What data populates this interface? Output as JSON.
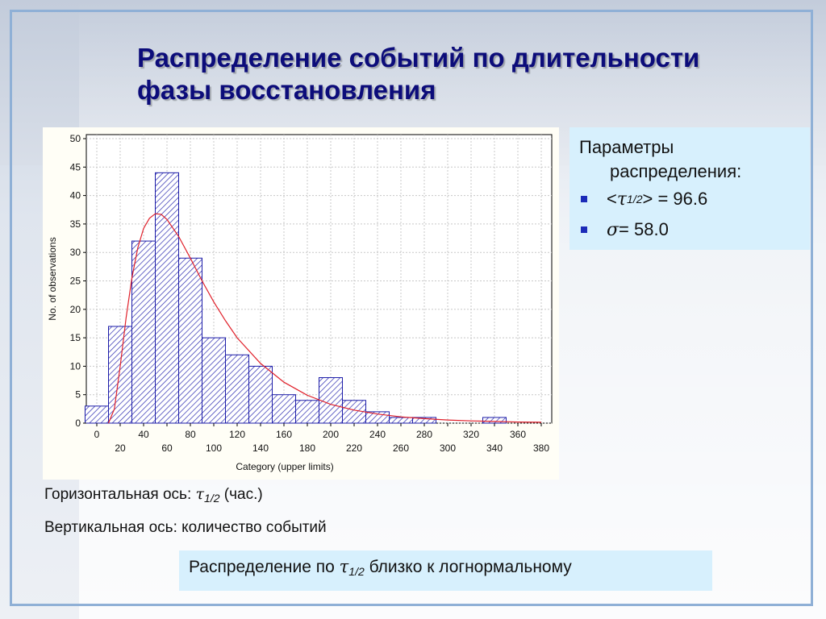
{
  "slide": {
    "title": "Распределение событий по длительности фазы восстановления"
  },
  "params_box": {
    "heading_line1": "Параметры",
    "heading_line2": "распределения:",
    "param1": {
      "prefix": "<",
      "symbol": "τ",
      "subscript": "1/2",
      "suffix": "> = 96.6"
    },
    "param2": {
      "symbol": "σ",
      "suffix": " = 58.0"
    }
  },
  "captions": {
    "horizontal_prefix": "Горизонтальная ось: ",
    "horizontal_symbol": "τ",
    "horizontal_subscript": "1/2",
    "horizontal_suffix": " (час.)",
    "vertical": "Вертикальная ось: количество событий"
  },
  "conclusion": {
    "prefix": "Распределение по ",
    "symbol": "τ",
    "subscript": "1/2",
    "suffix": " близко к логнормальному"
  },
  "colors": {
    "bar_stroke": "#1c1ca8",
    "curve": "#e0202a",
    "title": "#0c0c7a",
    "box_bg": "#d7f0fd"
  },
  "chart_data": {
    "type": "bar",
    "xlabel": "Category (upper limits)",
    "ylabel": "No. of observations",
    "xlim": [
      0,
      380
    ],
    "ylim": [
      0,
      50
    ],
    "bin_width": 20,
    "x_ticks": [
      0,
      20,
      40,
      60,
      80,
      100,
      120,
      140,
      160,
      180,
      200,
      220,
      240,
      260,
      280,
      300,
      320,
      340,
      360,
      380
    ],
    "y_ticks": [
      0,
      5,
      10,
      15,
      20,
      25,
      30,
      35,
      40,
      45,
      50
    ],
    "grid": true,
    "bars": [
      {
        "upper": 0,
        "value": 3
      },
      {
        "upper": 20,
        "value": 17
      },
      {
        "upper": 40,
        "value": 32
      },
      {
        "upper": 60,
        "value": 44
      },
      {
        "upper": 80,
        "value": 29
      },
      {
        "upper": 100,
        "value": 15
      },
      {
        "upper": 120,
        "value": 12
      },
      {
        "upper": 140,
        "value": 10
      },
      {
        "upper": 160,
        "value": 5
      },
      {
        "upper": 180,
        "value": 4
      },
      {
        "upper": 200,
        "value": 8
      },
      {
        "upper": 220,
        "value": 4
      },
      {
        "upper": 240,
        "value": 2
      },
      {
        "upper": 260,
        "value": 1
      },
      {
        "upper": 280,
        "value": 1
      },
      {
        "upper": 300,
        "value": 0
      },
      {
        "upper": 320,
        "value": 0
      },
      {
        "upper": 340,
        "value": 1
      },
      {
        "upper": 360,
        "value": 0
      },
      {
        "upper": 380,
        "value": 0
      }
    ],
    "fit_curve": {
      "type": "lognormal",
      "points": [
        [
          10,
          0
        ],
        [
          15,
          2.5
        ],
        [
          20,
          10
        ],
        [
          25,
          18.5
        ],
        [
          30,
          25.5
        ],
        [
          35,
          30.8
        ],
        [
          40,
          34.2
        ],
        [
          45,
          36.0
        ],
        [
          50,
          36.8
        ],
        [
          55,
          36.7
        ],
        [
          60,
          35.8
        ],
        [
          70,
          32.8
        ],
        [
          80,
          29.0
        ],
        [
          90,
          25.0
        ],
        [
          100,
          21.3
        ],
        [
          110,
          18.0
        ],
        [
          120,
          15.0
        ],
        [
          140,
          10.5
        ],
        [
          160,
          7.2
        ],
        [
          180,
          4.9
        ],
        [
          200,
          3.3
        ],
        [
          220,
          2.3
        ],
        [
          240,
          1.6
        ],
        [
          260,
          1.1
        ],
        [
          280,
          0.8
        ],
        [
          300,
          0.55
        ],
        [
          320,
          0.4
        ],
        [
          340,
          0.3
        ],
        [
          360,
          0.2
        ],
        [
          380,
          0.15
        ]
      ]
    }
  }
}
